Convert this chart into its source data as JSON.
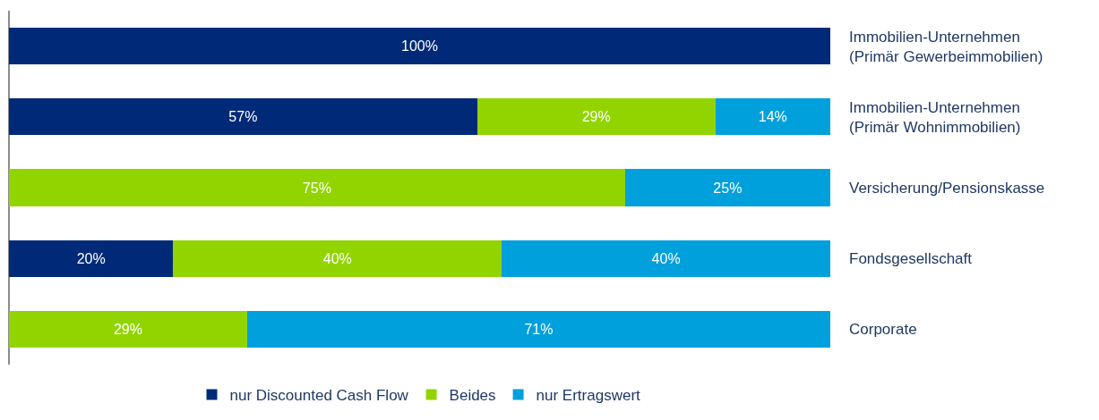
{
  "chart_data": {
    "type": "bar",
    "orientation": "horizontal",
    "stacked": true,
    "categories": [
      "Immobilien-Unternehmen\n(Primär Gewerbeimmobilien)",
      "Immobilien-Unternehmen\n(Primär Wohnimmobilien)",
      "Versicherung/Pensionskasse",
      "Fondsgesellschaft",
      "Corporate"
    ],
    "series": [
      {
        "name": "nur Discounted Cash Flow",
        "color": "#002a78",
        "values": [
          100,
          57,
          null,
          20,
          null
        ],
        "value_labels": [
          "100%",
          "57%",
          null,
          "20%",
          null
        ]
      },
      {
        "name": "Beides",
        "color": "#92d400",
        "values": [
          null,
          29,
          75,
          40,
          29
        ],
        "value_labels": [
          null,
          "29%",
          "75%",
          "40%",
          "29%"
        ]
      },
      {
        "name": "nur Ertragswert",
        "color": "#00a0dc",
        "values": [
          null,
          14,
          25,
          40,
          71
        ],
        "value_labels": [
          null,
          "14%",
          "25%",
          "40%",
          "71%"
        ]
      }
    ],
    "xlim": [
      0,
      100
    ],
    "tick_labels": "y",
    "grid": false,
    "legend": "bottom"
  }
}
